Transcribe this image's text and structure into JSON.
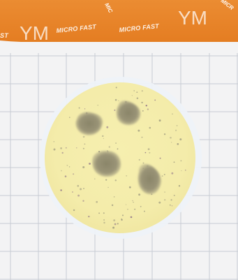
{
  "label": {
    "banner_color": "#e9872e",
    "ym_left": "YM",
    "ym_right": "YM",
    "text_left_clip": "ST",
    "text_micro_fast_1": "MICRO FAST",
    "text_micro_fast_2": "MICRO FAST",
    "text_rotated_1": "MIC",
    "text_rotated_2": "MICR"
  },
  "plate": {
    "grid_line_color": "#c7cbd3",
    "agar_color": "#f5eeae",
    "rim_color": "#e9eef6",
    "colony_color": "#8f8a6e"
  }
}
